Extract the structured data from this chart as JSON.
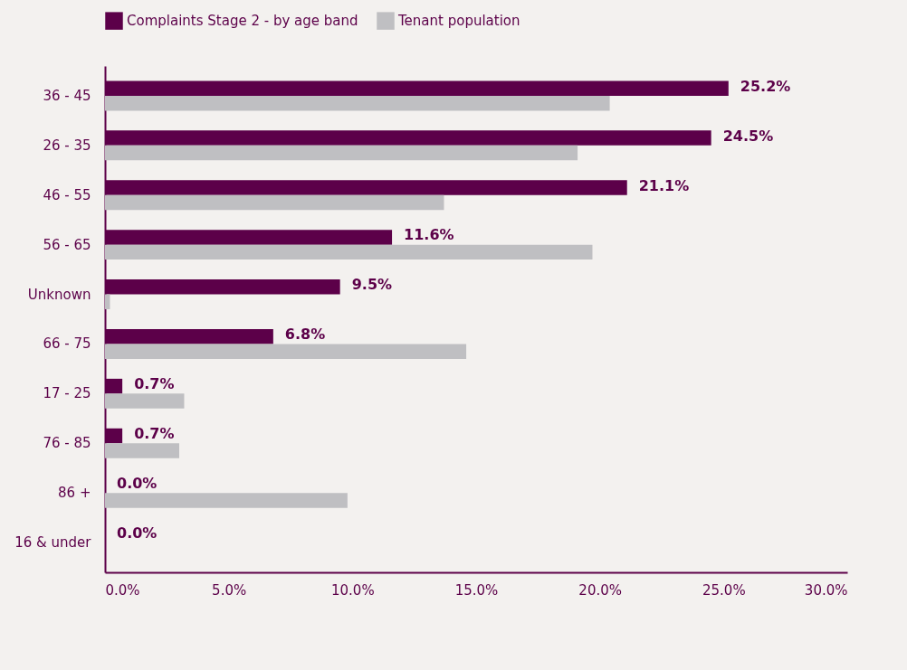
{
  "chart_data": {
    "type": "bar",
    "orientation": "horizontal",
    "categories": [
      "36 - 45",
      "26 - 35",
      "46 - 55",
      "56 - 65",
      "Unknown",
      "66 - 75",
      "17 - 25",
      "76 - 85",
      "86 +",
      "16 & under"
    ],
    "series": [
      {
        "name": "Complaints Stage 2 - by age band",
        "color": "#5c0049",
        "values": [
          25.2,
          24.5,
          21.1,
          11.6,
          9.5,
          6.8,
          0.7,
          0.7,
          0.0,
          0.0
        ],
        "value_labels": [
          "25.2%",
          "24.5%",
          "21.1%",
          "11.6%",
          "9.5%",
          "6.8%",
          "0.7%",
          "0.7%",
          "0.0%",
          "0.0%"
        ]
      },
      {
        "name": "Tenant population",
        "color": "#bfbfc2",
        "values": [
          20.4,
          19.1,
          13.7,
          19.7,
          0.2,
          14.6,
          3.2,
          3.0,
          9.8,
          0.0
        ]
      }
    ],
    "xlim": [
      0,
      30
    ],
    "xticks": [
      {
        "value": 0,
        "label": "0.0%"
      },
      {
        "value": 5,
        "label": "5.0%"
      },
      {
        "value": 10,
        "label": "10.0%"
      },
      {
        "value": 15,
        "label": "15.0%"
      },
      {
        "value": 20,
        "label": "20.0%"
      },
      {
        "value": 25,
        "label": "25.0%"
      },
      {
        "value": 30,
        "label": "30.0%"
      }
    ],
    "grid": false,
    "legend": "top left"
  }
}
